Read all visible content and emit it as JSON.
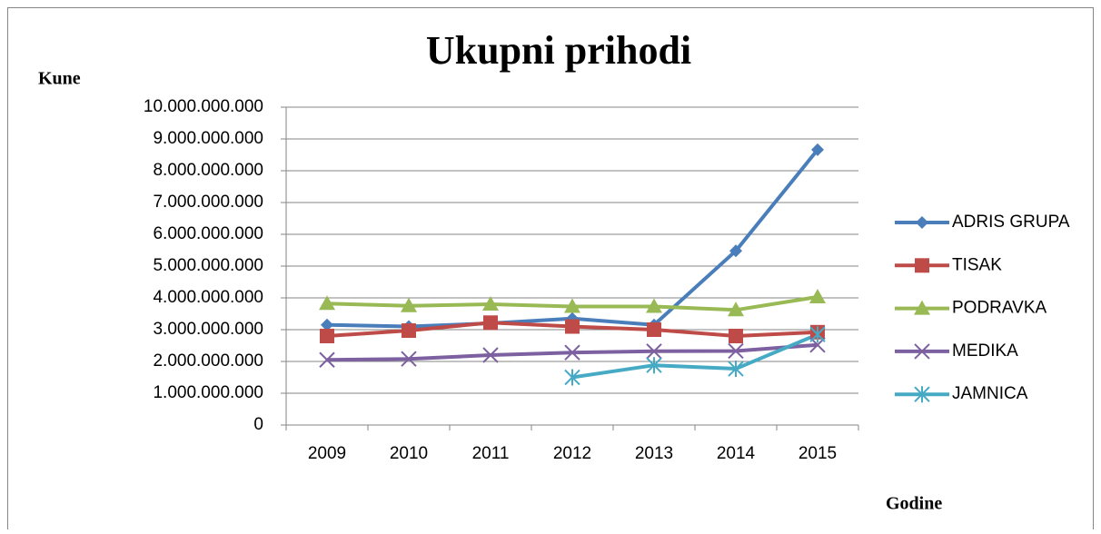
{
  "chart_data": {
    "type": "line",
    "title": "Ukupni prihodi",
    "y_label": "Kune",
    "x_label": "Godine",
    "categories": [
      "2009",
      "2010",
      "2011",
      "2012",
      "2013",
      "2014",
      "2015"
    ],
    "series": [
      {
        "name": "ADRIS GRUPA",
        "color": "#4a7ebb",
        "marker": "diamond",
        "values": [
          3150000000,
          3100000000,
          3200000000,
          3350000000,
          3150000000,
          5480000000,
          8660000000
        ]
      },
      {
        "name": "TISAK",
        "color": "#be4b48",
        "marker": "square",
        "values": [
          2800000000,
          2970000000,
          3220000000,
          3100000000,
          3000000000,
          2800000000,
          2920000000
        ]
      },
      {
        "name": "PODRAVKA",
        "color": "#98b954",
        "marker": "triangle",
        "values": [
          3820000000,
          3750000000,
          3800000000,
          3730000000,
          3730000000,
          3620000000,
          4030000000
        ]
      },
      {
        "name": "MEDIKA",
        "color": "#7d60a0",
        "marker": "x",
        "values": [
          2050000000,
          2080000000,
          2200000000,
          2280000000,
          2320000000,
          2330000000,
          2520000000
        ]
      },
      {
        "name": "JAMNICA",
        "color": "#46aac5",
        "marker": "star",
        "values": [
          null,
          null,
          null,
          1500000000,
          1880000000,
          1770000000,
          2850000000
        ]
      }
    ],
    "ylim": [
      0,
      10000000000
    ],
    "yticks": [
      0,
      {
        "value": 1000000000,
        "label": "1.000.000.000"
      },
      {
        "value": 2000000000,
        "label": "2.000.000.000"
      },
      {
        "value": 3000000000,
        "label": "3.000.000.000"
      },
      {
        "value": 4000000000,
        "label": "4.000.000.000"
      },
      {
        "value": 5000000000,
        "label": "5.000.000.000"
      },
      {
        "value": 6000000000,
        "label": "6.000.000.000"
      },
      {
        "value": 7000000000,
        "label": "7.000.000.000"
      },
      {
        "value": 8000000000,
        "label": "8.000.000.000"
      },
      {
        "value": 9000000000,
        "label": "9.000.000.000"
      },
      {
        "value": 10000000000,
        "label": "10.000.000.000"
      }
    ],
    "grid": true,
    "legend": "right"
  }
}
